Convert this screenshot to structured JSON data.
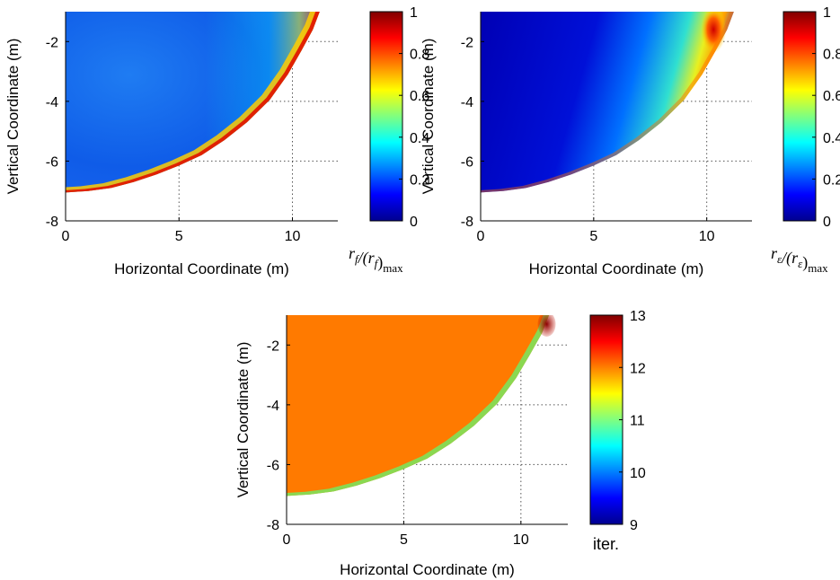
{
  "chart_data": [
    {
      "type": "heatmap",
      "xlabel": "Horizontal Coordinate (m)",
      "ylabel": "Vertical Coordinate (m)",
      "xlim": [
        0,
        12
      ],
      "ylim": [
        -8,
        -1
      ],
      "xticks": [
        "0",
        "5",
        "10"
      ],
      "yticks": [
        "-2",
        "-4",
        "-6",
        "-8"
      ],
      "grid": "dotted",
      "colormap": "jet",
      "colorbar": {
        "min": 0,
        "max": 1,
        "ticks": [
          "1",
          "0.8",
          "0.6",
          "0.4",
          "0.2",
          "0"
        ],
        "label_main": "r",
        "label_sub": "f",
        "label_tail_open": "/(r",
        "label_tail_sub": "f",
        "label_tail_close": ")",
        "label_max": "max"
      },
      "description_field": "rf normalized; low (~0.1-0.2) in interior, high (~0.9-1.0) near boundary at x≈10-11 and along bottom edge"
    },
    {
      "type": "heatmap",
      "xlabel": "Horizontal Coordinate (m)",
      "ylabel": "Vertical Coordinate (m)",
      "xlim": [
        0,
        12
      ],
      "ylim": [
        -8,
        -1
      ],
      "xticks": [
        "0",
        "5",
        "10"
      ],
      "yticks": [
        "-2",
        "-4",
        "-6",
        "-8"
      ],
      "grid": "dotted",
      "colormap": "jet",
      "colorbar": {
        "min": 0,
        "max": 1,
        "ticks": [
          "1",
          "0.8",
          "0.6",
          "0.4",
          "0.2",
          "0"
        ],
        "label_main": "r",
        "label_sub": "ε",
        "label_tail_open": "/(r",
        "label_tail_sub": "ε",
        "label_tail_close": ")",
        "label_max": "max"
      },
      "description_field": "r-epsilon normalized; near 0 in most of the region, increasing to ~0.5-0.7 in a band toward x≈9-10, ~1.0 at top near x≈10"
    },
    {
      "type": "heatmap",
      "xlabel": "Horizontal Coordinate (m)",
      "ylabel": "Vertical Coordinate (m)",
      "xlim": [
        0,
        12
      ],
      "ylim": [
        -8,
        -1
      ],
      "xticks": [
        "0",
        "5",
        "10"
      ],
      "yticks": [
        "-2",
        "-4",
        "-6",
        "-8"
      ],
      "grid": "dotted",
      "colormap": "jet",
      "colorbar": {
        "min": 9,
        "max": 13,
        "ticks": [
          "13",
          "12",
          "11",
          "10",
          "9"
        ],
        "label": "iter."
      },
      "description_field": "iterations; ~12 throughout region, ~10-11 along lower/right boundary, ~13 at top right corner"
    }
  ]
}
